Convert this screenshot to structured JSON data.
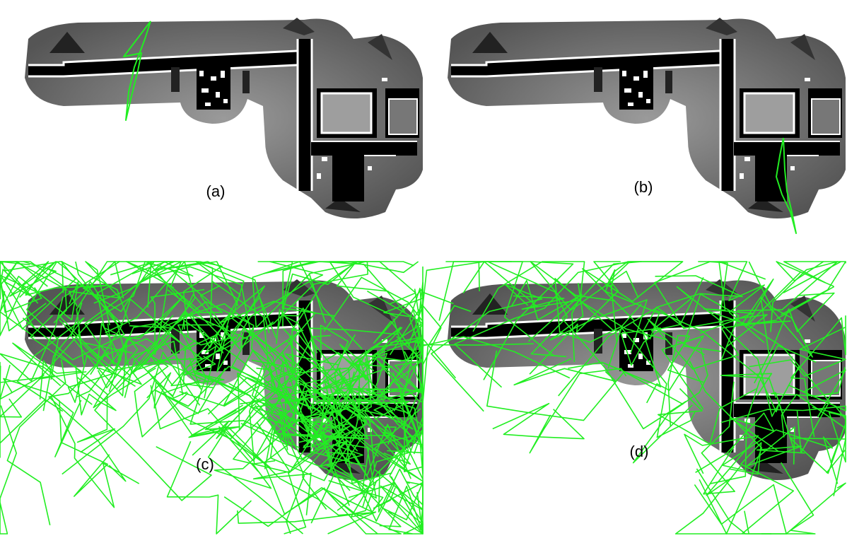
{
  "figure": {
    "panels": [
      {
        "id": "a",
        "label": "(a)",
        "trajectory_density": "sparse"
      },
      {
        "id": "b",
        "label": "(b)",
        "trajectory_density": "sparse"
      },
      {
        "id": "c",
        "label": "(c)",
        "trajectory_density": "very-dense"
      },
      {
        "id": "d",
        "label": "(d)",
        "trajectory_density": "dense"
      }
    ],
    "colors": {
      "background": "#ffffff",
      "map_outer": "#6e6e6e",
      "map_inner": "#8c8c8c",
      "corridor": "#000000",
      "wall": "#ffffff",
      "trajectory": "#22ee22"
    },
    "icons": [
      "occupancy-map",
      "robot-trajectory"
    ]
  }
}
